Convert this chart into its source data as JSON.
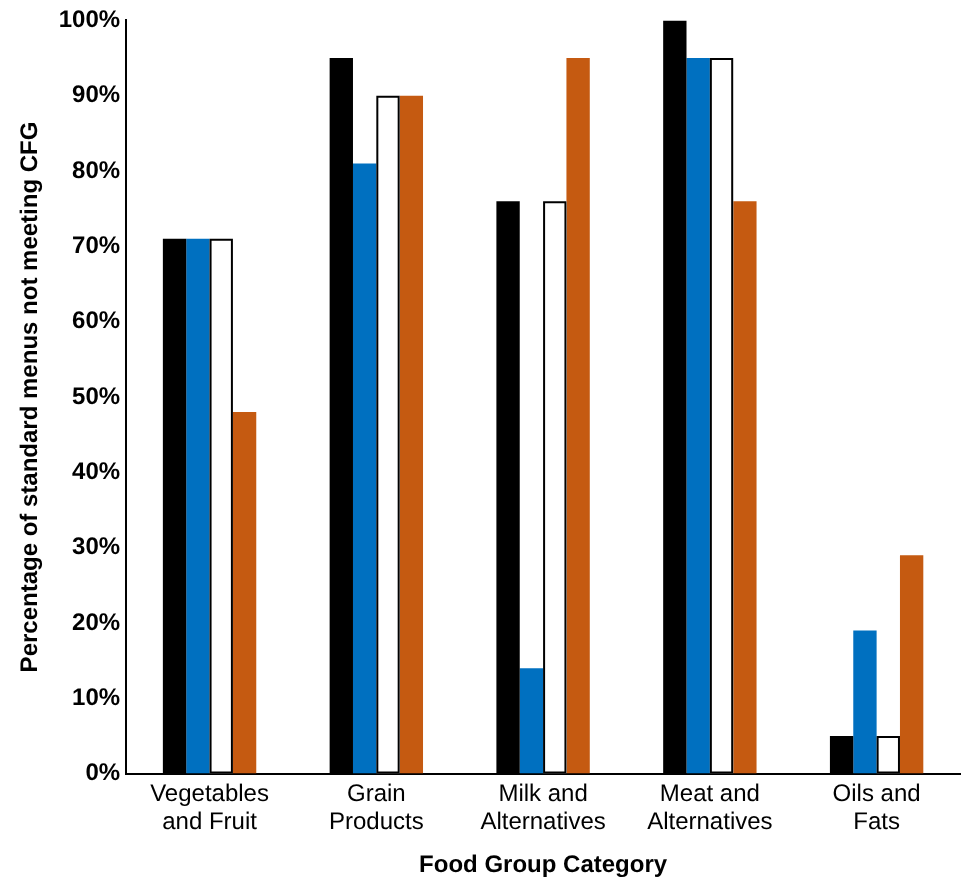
{
  "chart_data": {
    "type": "bar",
    "xlabel": "Food Group Category",
    "ylabel": "Percentage of standard menus not meeting CFG",
    "categories": [
      "Vegetables and Fruit",
      "Grain Products",
      "Milk and Alternatives",
      "Meat and Alternatives",
      "Oils and Fats"
    ],
    "series": [
      {
        "color": "#000000",
        "values": [
          71,
          95,
          76,
          100,
          5
        ]
      },
      {
        "color": "#0070c0",
        "values": [
          71,
          81,
          14,
          95,
          19
        ]
      },
      {
        "color": "#ffffff",
        "values": [
          71,
          90,
          76,
          95,
          5
        ]
      },
      {
        "color": "#c55a11",
        "values": [
          48,
          90,
          95,
          76,
          29
        ]
      }
    ],
    "ylim": [
      0,
      100
    ],
    "yticks": [
      {
        "value": 0,
        "label": "0%"
      },
      {
        "value": 10,
        "label": "10%"
      },
      {
        "value": 20,
        "label": "20%"
      },
      {
        "value": 30,
        "label": "30%"
      },
      {
        "value": 40,
        "label": "40%"
      },
      {
        "value": 50,
        "label": "50%"
      },
      {
        "value": 60,
        "label": "60%"
      },
      {
        "value": 70,
        "label": "70%"
      },
      {
        "value": 80,
        "label": "80%"
      },
      {
        "value": 90,
        "label": "90%"
      },
      {
        "value": 100,
        "label": "100%"
      }
    ],
    "grid": false,
    "legend": false
  }
}
